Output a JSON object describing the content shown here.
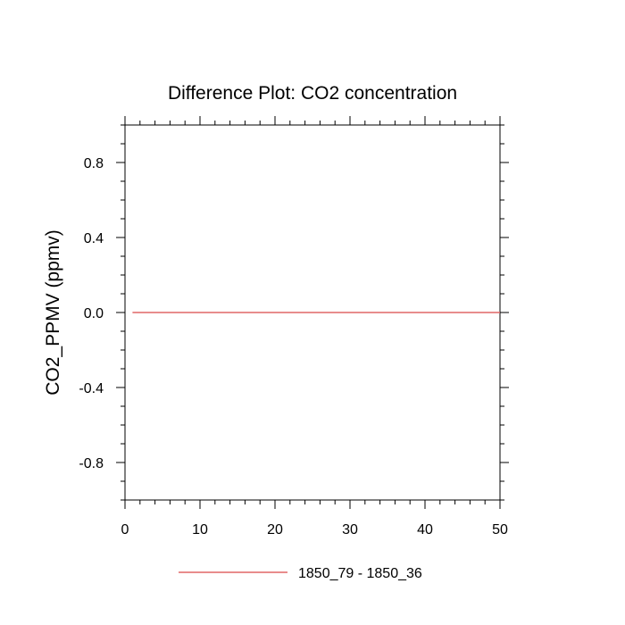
{
  "chart_data": {
    "type": "line",
    "title": "Difference Plot: CO2 concentration",
    "xlabel": "",
    "ylabel": "CO2_PPMV  (ppmv)",
    "xlim": [
      0,
      50
    ],
    "ylim": [
      -1,
      1
    ],
    "x_ticks": [
      0,
      10,
      20,
      30,
      40,
      50
    ],
    "x_tick_labels": [
      "0",
      "10",
      "20",
      "30",
      "40",
      "50"
    ],
    "y_ticks": [
      -0.8,
      -0.4,
      0.0,
      0.4,
      0.8
    ],
    "y_tick_labels": [
      "-0.8",
      "-0.4",
      "0.0",
      "0.4",
      "0.8"
    ],
    "grid": false,
    "legend_position": "bottom",
    "series": [
      {
        "name": "1850_79 - 1850_36",
        "color": "#e06666",
        "x": [
          1,
          50
        ],
        "y": [
          0,
          0
        ]
      }
    ]
  }
}
